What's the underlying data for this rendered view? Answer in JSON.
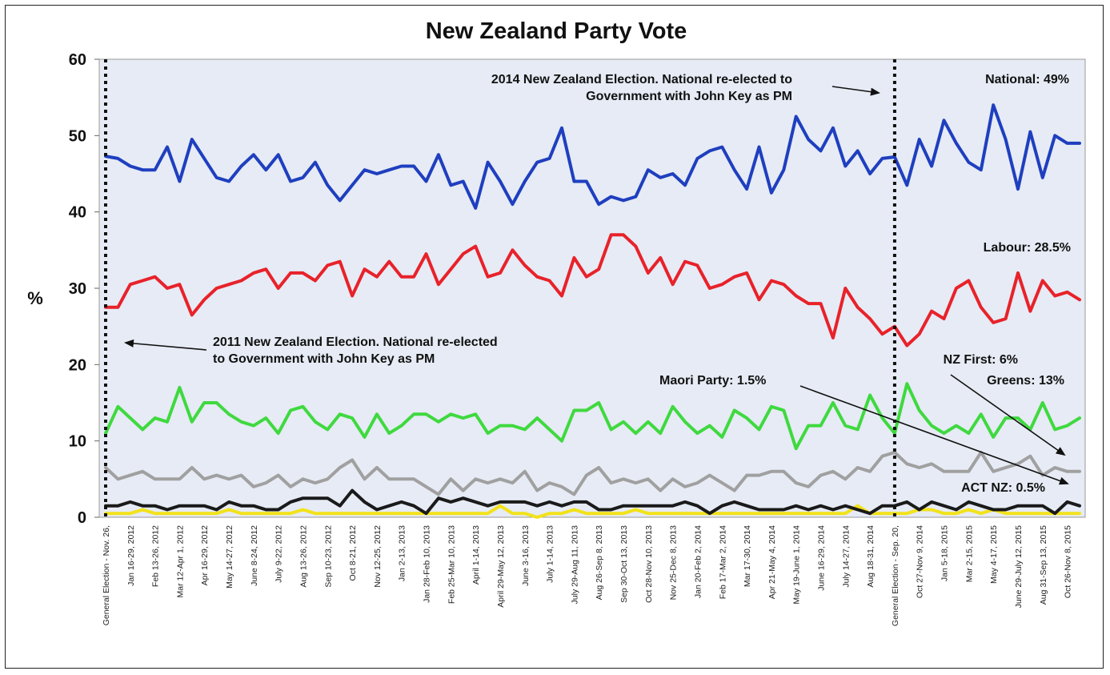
{
  "chart_data": {
    "type": "line",
    "title": "New Zealand Party Vote",
    "ylabel": "%",
    "xlabel": "",
    "ylim": [
      0,
      60
    ],
    "yticks": [
      0,
      10,
      20,
      30,
      40,
      50,
      60
    ],
    "grid": false,
    "tick_labels": [
      "General Election - Nov. 26,",
      "Jan 16-29, 2012",
      "Feb 13-26, 2012",
      "Mar 12-Apr 1, 2012",
      "Apr 16-29, 2012",
      "May 14-27, 2012",
      "June 8-24, 2012",
      "July 9-22, 2012",
      "Aug 13-26, 2012",
      "Sep 10-23, 2012",
      "Oct 8-21, 2012",
      "Nov 12-25, 2012",
      "Jan 2-13, 2013",
      "Jan 28-Feb 10, 2013",
      "Feb 25-Mar 10, 2013",
      "April 1-14, 2013",
      "April 29-May 12, 2013",
      "June 3-16, 2013",
      "July 1-14, 2013",
      "July 29-Aug 11, 2013",
      "Aug 26-Sep 8, 2013",
      "Sep 30-Oct 13, 2013",
      "Oct 28-Nov 10, 2013",
      "Nov 25-Dec 8, 2013",
      "Jan 20-Feb 2, 2014",
      "Feb 17-Mar 2, 2014",
      "Mar 17-30, 2014",
      "Apr 21-May 4, 2014",
      "May 19-June 1, 2014",
      "June 16-29, 2014",
      "July 14-27, 2014",
      "Aug 18-31, 2014",
      "General Election - Sep. 20,",
      "Oct 27-Nov 9, 2014",
      "Jan 5-18, 2015",
      "Mar 2-15, 2015",
      "May 4-17, 2015",
      "June 29-July 12, 2015",
      "Aug 31-Sep 13, 2015",
      "Oct 26-Nov 8, 2015"
    ],
    "series": [
      {
        "name": "National",
        "color": "#1f3fbf",
        "values": [
          47.3,
          47,
          46,
          45.5,
          45.5,
          48.5,
          44,
          49.5,
          47,
          44.5,
          44,
          46,
          47.5,
          45.5,
          47.5,
          44,
          44.5,
          46.5,
          43.5,
          41.5,
          43.5,
          45.5,
          45,
          45.5,
          46,
          46,
          44,
          47.5,
          43.5,
          44,
          40.5,
          46.5,
          44,
          41,
          44,
          46.5,
          47,
          51,
          44,
          44,
          41,
          42,
          41.5,
          42,
          45.5,
          44.5,
          45,
          43.5,
          47,
          48,
          48.5,
          45.5,
          43,
          48.5,
          42.5,
          45.5,
          52.5,
          49.5,
          48,
          51,
          46,
          48,
          45,
          47,
          47.2,
          43.5,
          49.5,
          46,
          52,
          49,
          46.5,
          45.5,
          54,
          49.5,
          43,
          50.5,
          44.5,
          50,
          49,
          49
        ]
      },
      {
        "name": "Labour",
        "color": "#e8222a",
        "values": [
          27.5,
          27.5,
          30.5,
          31,
          31.5,
          30,
          30.5,
          26.5,
          28.5,
          30,
          30.5,
          31,
          32,
          32.5,
          30,
          32,
          32,
          31,
          33,
          33.5,
          29,
          32.5,
          31.5,
          33.5,
          31.5,
          31.5,
          34.5,
          30.5,
          32.5,
          34.5,
          35.5,
          31.5,
          32,
          35,
          33,
          31.5,
          31,
          29,
          34,
          31.5,
          32.5,
          37,
          37,
          35.5,
          32,
          34,
          30.5,
          33.5,
          33,
          30,
          30.5,
          31.5,
          32,
          28.5,
          31,
          30.5,
          29,
          28,
          28,
          23.5,
          30,
          27.5,
          26,
          24,
          25,
          22.5,
          24,
          27,
          26,
          30,
          31,
          27.5,
          25.5,
          26,
          32,
          27,
          31,
          29,
          29.5,
          28.5
        ]
      },
      {
        "name": "Greens",
        "color": "#3fd93f",
        "values": [
          11,
          14.5,
          13,
          11.5,
          13,
          12.5,
          17,
          12.5,
          15,
          15,
          13.5,
          12.5,
          12,
          13,
          11,
          14,
          14.5,
          12.5,
          11.5,
          13.5,
          13,
          10.5,
          13.5,
          11,
          12,
          13.5,
          13.5,
          12.5,
          13.5,
          13,
          13.5,
          11,
          12,
          12,
          11.5,
          13,
          11.5,
          10,
          14,
          14,
          15,
          11.5,
          12.5,
          11,
          12.5,
          11,
          14.5,
          12.5,
          11,
          12,
          10.5,
          14,
          13,
          11.5,
          14.5,
          14,
          9,
          12,
          12,
          15,
          12,
          11.5,
          16,
          13,
          11,
          17.5,
          14,
          12,
          11,
          12,
          11,
          13.5,
          10.5,
          13,
          13,
          11.5,
          15,
          11.5,
          12,
          13
        ]
      },
      {
        "name": "NZ First",
        "color": "#a0a0a0",
        "values": [
          6.5,
          5,
          5.5,
          6,
          5,
          5,
          5,
          6.5,
          5,
          5.5,
          5,
          5.5,
          4,
          4.5,
          5.5,
          4,
          5,
          4.5,
          5,
          6.5,
          7.5,
          5,
          6.5,
          5,
          5,
          5,
          4,
          3,
          5,
          3.5,
          5,
          4.5,
          5,
          4.5,
          6,
          3.5,
          4.5,
          4,
          3,
          5.5,
          6.5,
          4.5,
          5,
          4.5,
          5,
          3.5,
          5,
          4,
          4.5,
          5.5,
          4.5,
          3.5,
          5.5,
          5.5,
          6,
          6,
          4.5,
          4,
          5.5,
          6,
          5,
          6.5,
          6,
          8,
          8.5,
          7,
          6.5,
          7,
          6,
          6,
          6,
          8.5,
          6,
          6.5,
          7,
          8,
          5.5,
          6.5,
          6,
          6
        ]
      },
      {
        "name": "Maori Party",
        "color": "#1a1a1a",
        "values": [
          1.5,
          1.5,
          2,
          1.5,
          1.5,
          1,
          1.5,
          1.5,
          1.5,
          1,
          2,
          1.5,
          1.5,
          1,
          1,
          2,
          2.5,
          2.5,
          2.5,
          1.5,
          3.5,
          2,
          1,
          1.5,
          2,
          1.5,
          0.5,
          2.5,
          2,
          2.5,
          2,
          1.5,
          2,
          2,
          2,
          1.5,
          2,
          1.5,
          2,
          2,
          1,
          1,
          1.5,
          1.5,
          1.5,
          1.5,
          1.5,
          2,
          1.5,
          0.5,
          1.5,
          2,
          1.5,
          1,
          1,
          1,
          1.5,
          1,
          1.5,
          1,
          1.5,
          1,
          0.5,
          1.5,
          1.5,
          2,
          1,
          2,
          1.5,
          1,
          2,
          1.5,
          1,
          1,
          1.5,
          1.5,
          1.5,
          0.5,
          2,
          1.5
        ]
      },
      {
        "name": "ACT NZ",
        "color": "#f2e21a",
        "values": [
          0.5,
          0.5,
          0.5,
          1,
          0.5,
          0.5,
          0.5,
          0.5,
          0.5,
          0.5,
          1,
          0.5,
          0.5,
          0.5,
          0.5,
          0.5,
          1,
          0.5,
          0.5,
          0.5,
          0.5,
          0.5,
          0.5,
          0.5,
          0.5,
          0.5,
          0.5,
          0.5,
          0.5,
          0.5,
          0.5,
          0.5,
          1.5,
          0.5,
          0.5,
          0,
          0.5,
          0.5,
          1,
          0.5,
          0.5,
          0.5,
          0.5,
          1,
          0.5,
          0.5,
          0.5,
          0.5,
          0.5,
          0.5,
          0.5,
          0.5,
          0.5,
          0.5,
          0.5,
          0.5,
          0.5,
          0.5,
          0.5,
          0.5,
          0.5,
          1.5,
          0.5,
          0.5,
          0.5,
          0.5,
          1,
          1,
          0.5,
          0.5,
          1,
          0.5,
          1,
          0.5,
          0.5,
          0.5,
          0.5,
          0.5,
          0.5,
          0.5
        ]
      }
    ],
    "events": [
      {
        "name": "2011 election",
        "x_index": 0
      },
      {
        "name": "2014 election",
        "x_index": 64
      }
    ],
    "annotations": {
      "election_2014_line1": "2014 New Zealand Election. National re-elected to",
      "election_2014_line2": "Government with John Key as PM",
      "election_2011_line1": "2011 New Zealand Election. National re-elected",
      "election_2011_line2": "to Government with John Key as PM",
      "national": "National: 49%",
      "labour": "Labour: 28.5%",
      "nzfirst": "NZ First: 6%",
      "greens": "Greens: 13%",
      "maori": "Maori Party:  1.5%",
      "act": "ACT NZ:  0.5%"
    }
  }
}
